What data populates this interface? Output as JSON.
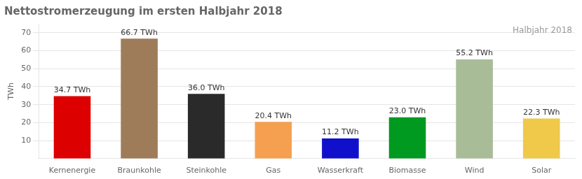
{
  "chart_data": {
    "type": "bar",
    "title": "Nettostromerzeugung im ersten Halbjahr 2018",
    "y_label": "TWh",
    "annotations": [
      "Halbjahr 2018"
    ],
    "categories": [
      "Kernenergie",
      "Braunkohle",
      "Steinkohle",
      "Gas",
      "Wasserkraft",
      "Biomasse",
      "Wind",
      "Solar"
    ],
    "values": [
      34.7,
      66.7,
      36.0,
      20.4,
      11.2,
      23.0,
      55.2,
      22.3
    ],
    "value_labels": [
      "34.7 TWh",
      "66.7 TWh",
      "36.0 TWh",
      "20.4 TWh",
      "11.2 TWh",
      "23.0 TWh",
      "55.2 TWh",
      "22.3 TWh"
    ],
    "colors": [
      "#dd0000",
      "#9e7c5a",
      "#2a2a2a",
      "#f5a050",
      "#1010cc",
      "#009a20",
      "#a8bc98",
      "#f0c84a"
    ],
    "ylim": [
      0,
      75
    ],
    "yticks": [
      10,
      20,
      30,
      40,
      50,
      60,
      70
    ],
    "grid": true,
    "data_labels": true
  }
}
